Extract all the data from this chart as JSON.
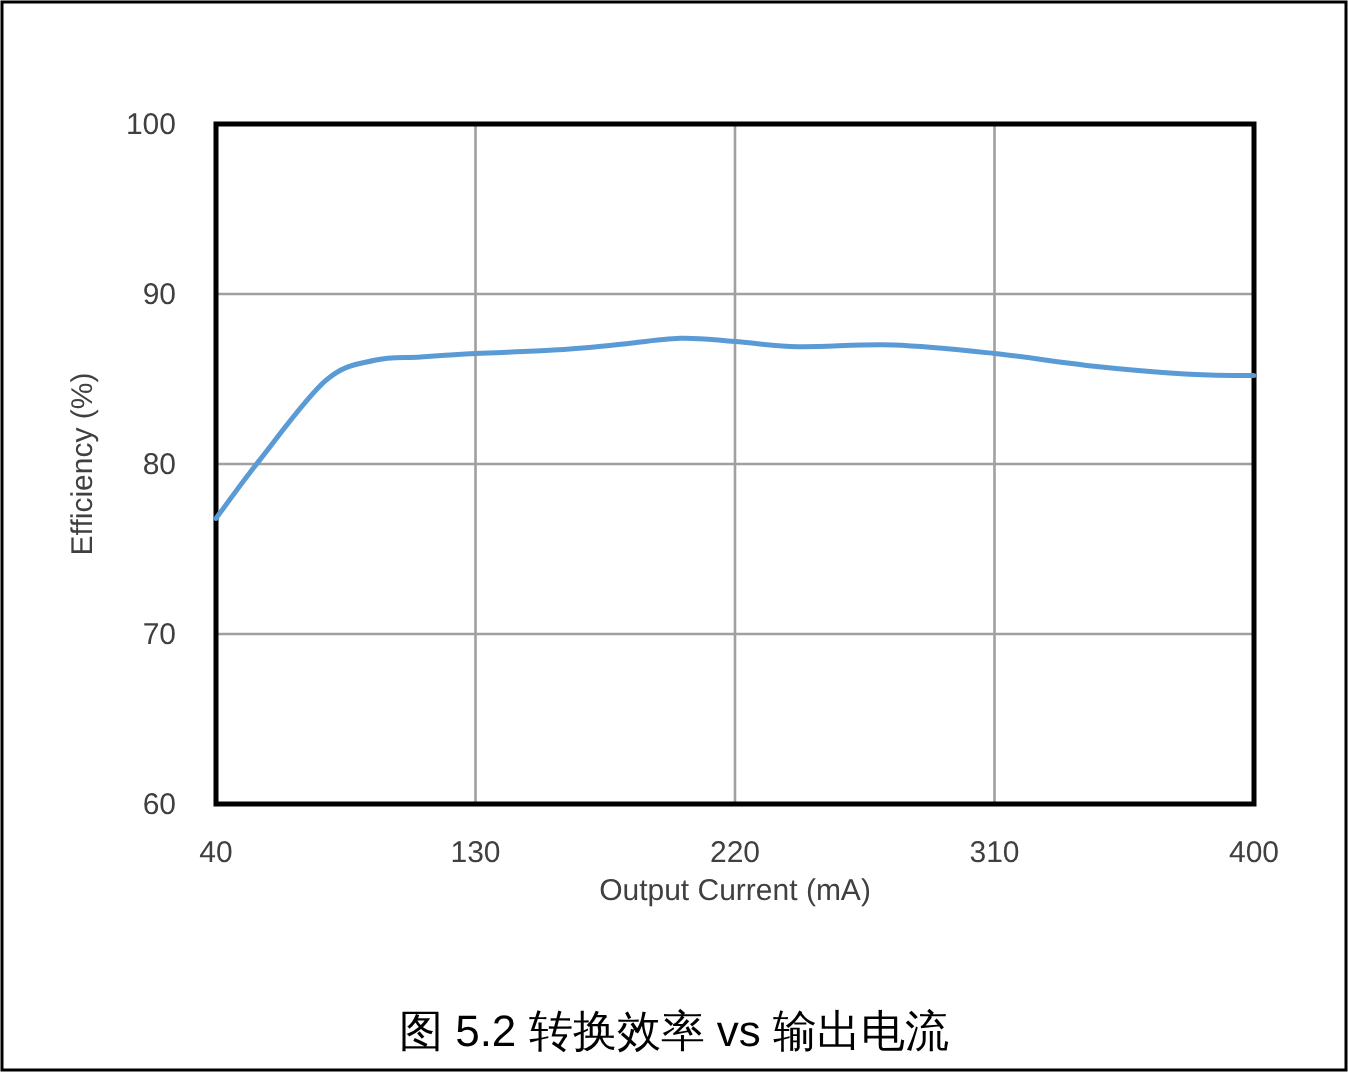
{
  "chart_data": {
    "type": "line",
    "xlabel": "Output Current (mA)",
    "ylabel": "Efficiency (%)",
    "annotations": [
      "图 5.2 转换效率 vs 输出电流"
    ],
    "x": [
      40,
      55,
      78,
      95,
      111,
      130,
      157,
      178,
      201,
      220,
      242,
      275,
      310,
      342,
      376,
      400
    ],
    "series": [
      {
        "color": "#5b9bd5",
        "values": [
          76.8,
          80.2,
          84.9,
          86.1,
          86.3,
          86.5,
          86.7,
          87.0,
          87.4,
          87.2,
          86.9,
          87.0,
          86.5,
          85.8,
          85.3,
          85.2
        ]
      }
    ],
    "xlim": [
      40,
      400
    ],
    "ylim": [
      60,
      100
    ],
    "xticks": [
      40,
      130,
      220,
      310,
      400
    ],
    "yticks": [
      60,
      70,
      80,
      90,
      100
    ],
    "grid": true,
    "marker": "none",
    "line_style": "solid"
  }
}
